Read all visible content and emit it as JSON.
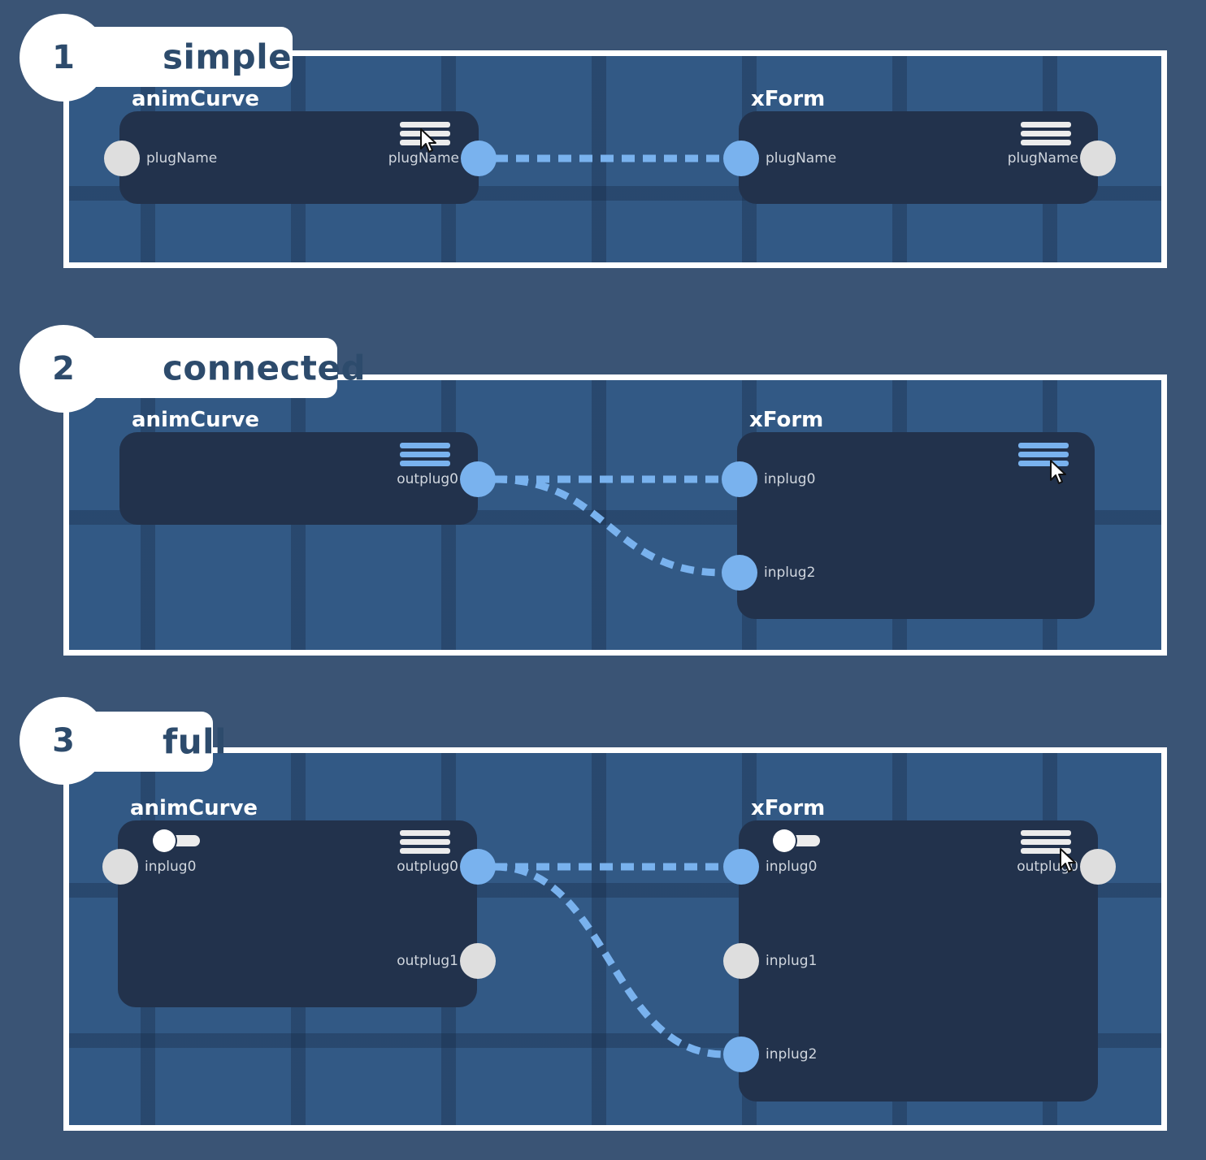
{
  "panels": [
    {
      "number": "1",
      "label": "simple",
      "nodes": [
        {
          "title": "animCurve",
          "plugs": [
            {
              "side": "left",
              "label": "plugName",
              "state": "inactive"
            },
            {
              "side": "right",
              "label": "plugName",
              "state": "active"
            }
          ]
        },
        {
          "title": "xForm",
          "plugs": [
            {
              "side": "left",
              "label": "plugName",
              "state": "active"
            },
            {
              "side": "right",
              "label": "plugName",
              "state": "inactive"
            }
          ]
        }
      ]
    },
    {
      "number": "2",
      "label": "connected",
      "nodes": [
        {
          "title": "animCurve",
          "plugs": [
            {
              "side": "right",
              "label": "outplug0",
              "state": "active"
            }
          ]
        },
        {
          "title": "xForm",
          "plugs": [
            {
              "side": "left",
              "label": "inplug0",
              "state": "active"
            },
            {
              "side": "left",
              "label": "inplug2",
              "state": "active"
            }
          ]
        }
      ]
    },
    {
      "number": "3",
      "label": "full",
      "nodes": [
        {
          "title": "animCurve",
          "plugs": [
            {
              "side": "left",
              "label": "inplug0",
              "state": "inactive"
            },
            {
              "side": "right",
              "label": "outplug0",
              "state": "active"
            },
            {
              "side": "right",
              "label": "outplug1",
              "state": "inactive"
            }
          ]
        },
        {
          "title": "xForm",
          "plugs": [
            {
              "side": "left",
              "label": "inplug0",
              "state": "active"
            },
            {
              "side": "left",
              "label": "inplug1",
              "state": "inactive"
            },
            {
              "side": "left",
              "label": "inplug2",
              "state": "active"
            },
            {
              "side": "right",
              "label": "outplug0",
              "state": "inactive"
            }
          ]
        }
      ]
    }
  ],
  "icons": [
    "stack-menu-icon",
    "toggle-icon",
    "mouse-cursor-icon"
  ],
  "colors": {
    "background": "#3a5475",
    "canvas": "#325985",
    "node": "#22324c",
    "active_port": "#79b2ee",
    "inactive_port": "#dedede",
    "frame": "#ffffff",
    "tab_text": "#2d4b6c"
  }
}
